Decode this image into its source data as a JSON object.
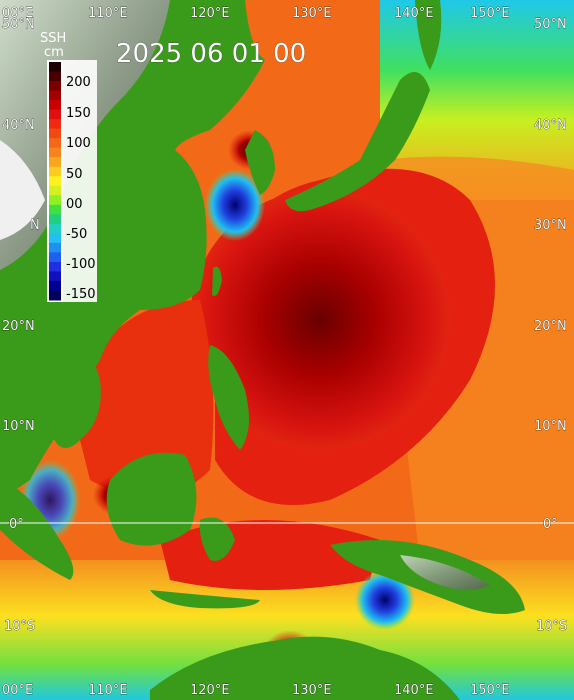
{
  "title": "2025 06 01 00",
  "colorbar": {
    "label_line1": "SSH",
    "label_line2": "cm",
    "ticks": [
      "200",
      "150",
      "100",
      "50",
      "00",
      "-50",
      "-100",
      "-150"
    ],
    "colors": [
      "#1a0000",
      "#4b0000",
      "#7a0000",
      "#a30000",
      "#c80000",
      "#e01010",
      "#ef2a10",
      "#f04a14",
      "#f4661a",
      "#f58420",
      "#f8a520",
      "#fccb20",
      "#fff020",
      "#d4f020",
      "#90f020",
      "#40e040",
      "#20d080",
      "#20d0c0",
      "#20c0f0",
      "#2090f0",
      "#2060f0",
      "#2030e0",
      "#1010c0",
      "#000090",
      "#000060"
    ]
  },
  "longitude_labels_top": [
    "00°E",
    "110°E",
    "120°E",
    "130°E",
    "140°E",
    "150°E"
  ],
  "longitude_labels_bottom": [
    "00°E",
    "110°E",
    "120°E",
    "130°E",
    "140°E",
    "150°E"
  ],
  "latitude_labels_right": [
    "50°N",
    "40°N",
    "30°N",
    "20°N",
    "10°N",
    "0°",
    "10°S"
  ],
  "latitude_labels_left": [
    "50°N",
    "40°N",
    "N",
    "20°N",
    "10°N",
    "0°",
    "10°S"
  ],
  "colors": {
    "land_low": "#3a9a1a",
    "land_high": "#8c8c8c",
    "equator_line": "#ffffff"
  }
}
